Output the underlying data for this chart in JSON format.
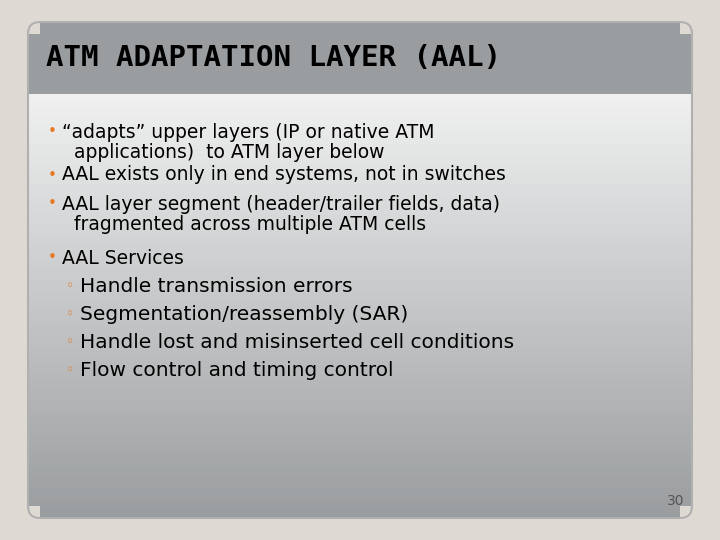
{
  "title": "ATM ADAPTATION LAYER (AAL)",
  "background_outer": "#dedad3",
  "background_slide_top": "#9a9d9f",
  "background_slide_bottom": "#ffffff",
  "title_color": "#000000",
  "title_fontsize": 21,
  "bullet_color": "#e87722",
  "text_color": "#000000",
  "bullet_fontsize": 13.5,
  "sub_bullet_fontsize": 14.5,
  "page_number": "30",
  "bullet_char": "•",
  "sub_bullet_char": "◦",
  "bullet1_line1": "“adapts” upper layers (IP or native ATM",
  "bullet1_line2": "applications)  to ATM layer below",
  "bullet2": "AAL exists only in end systems, not in switches",
  "bullet3_line1": "AAL layer segment (header/trailer fields, data)",
  "bullet3_line2": "fragmented across multiple ATM cells",
  "aal_services": "AAL Services",
  "sub_bullets": [
    "Handle transmission errors",
    "Segmentation/reassembly (SAR)",
    "Handle lost and misinserted cell conditions",
    "Flow control and timing control"
  ]
}
